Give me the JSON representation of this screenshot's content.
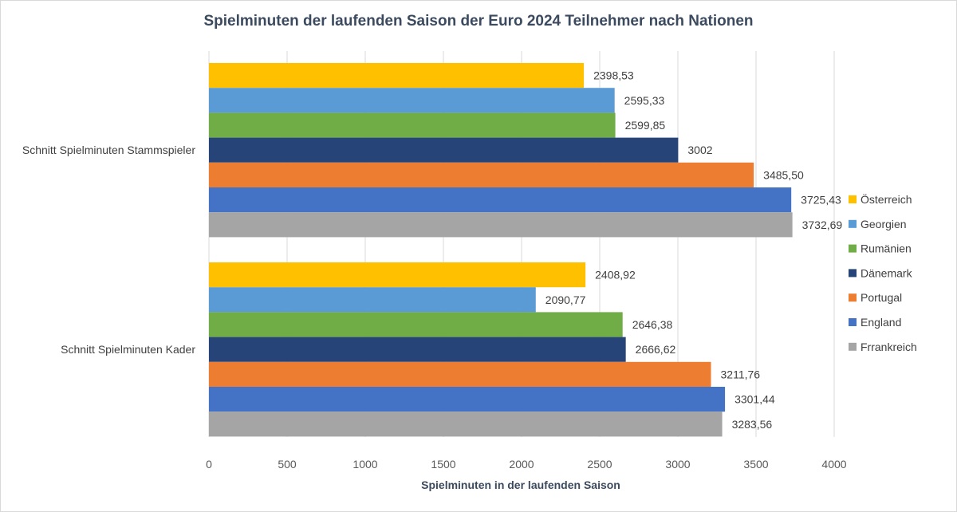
{
  "chart_data": {
    "type": "bar",
    "orientation": "horizontal",
    "title": "Spielminuten der laufenden Saison der Euro 2024 Teilnehmer nach Nationen",
    "xlabel": "Spielminuten in der laufenden Saison",
    "ylabel": "",
    "xlim": [
      0,
      4000
    ],
    "xticks": [
      0,
      500,
      1000,
      1500,
      2000,
      2500,
      3000,
      3500,
      4000
    ],
    "grid": true,
    "legend_position": "right",
    "categories": [
      "Schnitt Spielminuten Stammspieler",
      "Schnitt Spielminuten Kader"
    ],
    "series": [
      {
        "name": "Österreich",
        "color": "#FFC000",
        "values": [
          2398.53,
          2408.92
        ],
        "labels": [
          "2398,53",
          "2408,92"
        ]
      },
      {
        "name": "Georgien",
        "color": "#5B9BD5",
        "values": [
          2595.33,
          2090.77
        ],
        "labels": [
          "2595,33",
          "2090,77"
        ]
      },
      {
        "name": "Rumänien",
        "color": "#70AD47",
        "values": [
          2599.85,
          2646.38
        ],
        "labels": [
          "2599,85",
          "2646,38"
        ]
      },
      {
        "name": "Dänemark",
        "color": "#264478",
        "values": [
          3002,
          2666.62
        ],
        "labels": [
          "3002",
          "2666,62"
        ]
      },
      {
        "name": "Portugal",
        "color": "#ED7D31",
        "values": [
          3485.5,
          3211.76
        ],
        "labels": [
          "3485,50",
          "3211,76"
        ]
      },
      {
        "name": "England",
        "color": "#4472C4",
        "values": [
          3725.43,
          3301.44
        ],
        "labels": [
          "3725,43",
          "3301,44"
        ]
      },
      {
        "name": "Frrankreich",
        "color": "#A5A5A5",
        "values": [
          3732.69,
          3283.56
        ],
        "labels": [
          "3732,69",
          "3283,56"
        ]
      }
    ]
  }
}
